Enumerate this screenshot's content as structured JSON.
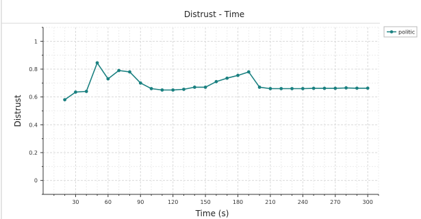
{
  "chart_data": {
    "type": "line",
    "title": "Distrust - Time",
    "xlabel": "Time (s)",
    "ylabel": "Distrust",
    "xlim": [
      0,
      310
    ],
    "ylim": [
      -0.1,
      1.1
    ],
    "xticks": [
      30,
      60,
      90,
      120,
      150,
      180,
      210,
      240,
      270,
      300
    ],
    "yticks": [
      0,
      0.2,
      0.4,
      0.6,
      0.8,
      1
    ],
    "ytick_labels": [
      "0",
      "0.2",
      "0.4",
      "0.6",
      "0.8",
      "1"
    ],
    "grid": true,
    "legend_position": "top-right",
    "series": [
      {
        "name": "politic",
        "color": "#1a8080",
        "x": [
          20,
          30,
          40,
          50,
          60,
          70,
          80,
          90,
          100,
          110,
          120,
          130,
          140,
          150,
          160,
          170,
          180,
          190,
          200,
          210,
          220,
          230,
          240,
          250,
          260,
          270,
          280,
          290,
          300
        ],
        "y": [
          0.58,
          0.635,
          0.64,
          0.845,
          0.73,
          0.79,
          0.78,
          0.7,
          0.66,
          0.65,
          0.65,
          0.655,
          0.67,
          0.67,
          0.71,
          0.735,
          0.755,
          0.78,
          0.67,
          0.66,
          0.66,
          0.66,
          0.66,
          0.662,
          0.662,
          0.662,
          0.665,
          0.663,
          0.663
        ]
      }
    ]
  }
}
